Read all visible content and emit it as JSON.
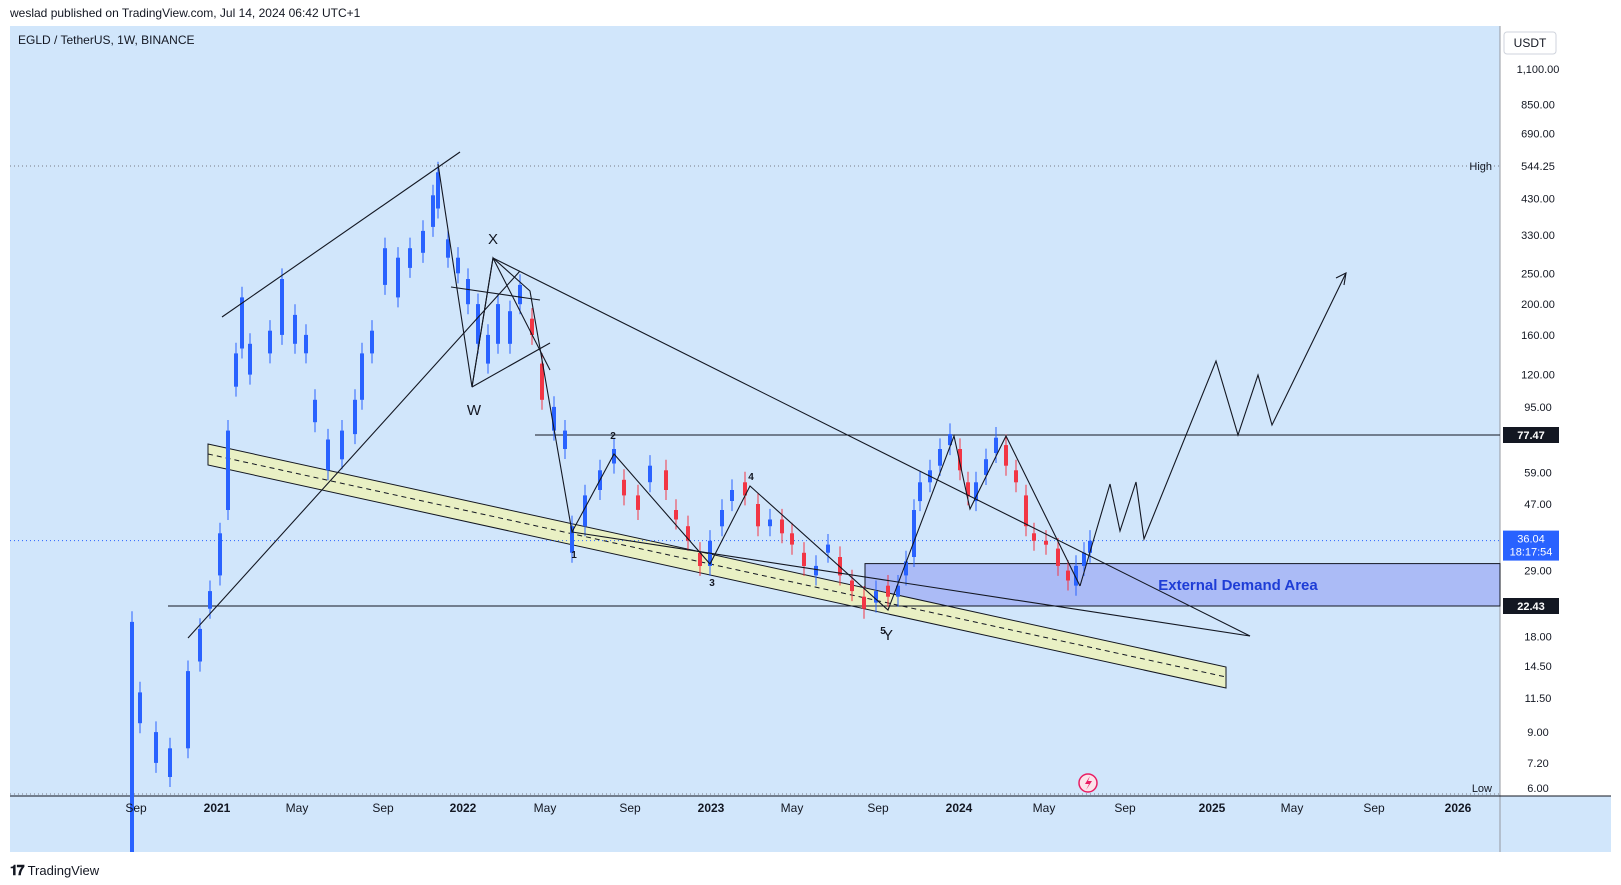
{
  "header": {
    "published_by": "weslad published on TradingView.com, Jul 14, 2024 06:42 UTC+1"
  },
  "footer": {
    "brand": "TradingView",
    "logo": "tradingview-logo"
  },
  "chart_data": {
    "type": "candlestick",
    "symbol_label": "EGLD / TetherUS, 1W, BINANCE",
    "currency": "USDT",
    "price_scale": [
      "1,100.00",
      "850.00",
      "690.00",
      "430.00",
      "330.00",
      "250.00",
      "200.00",
      "160.00",
      "120.00",
      "95.00",
      "59.00",
      "47.00",
      "29.00",
      "18.00",
      "14.50",
      "11.50",
      "9.00",
      "7.20"
    ],
    "markers": {
      "high": {
        "label": "High",
        "value": "544.25"
      },
      "low": {
        "label": "Low",
        "value": "6.00"
      },
      "level_top": "77.47",
      "level_bottom": "22.43",
      "last_price": "36.04",
      "countdown": "18:17:54"
    },
    "time_axis": [
      "Sep",
      "2021",
      "May",
      "Sep",
      "2022",
      "May",
      "Sep",
      "2023",
      "May",
      "Sep",
      "2024",
      "May",
      "Sep",
      "2025",
      "May",
      "Sep",
      "2026"
    ],
    "demand_zone": {
      "label": "External Demand Area",
      "from": 22.43,
      "to": 30.5
    },
    "wave_labels": [
      "X",
      "W",
      "1",
      "2",
      "3",
      "4",
      "5",
      "Y"
    ],
    "colors": {
      "background": "#d1e6fb",
      "up": "#2962ff",
      "down": "#f23645",
      "zone": "#a4b3f4",
      "zone_text": "#1e3dd6",
      "channel": "#e9f0c4"
    }
  }
}
